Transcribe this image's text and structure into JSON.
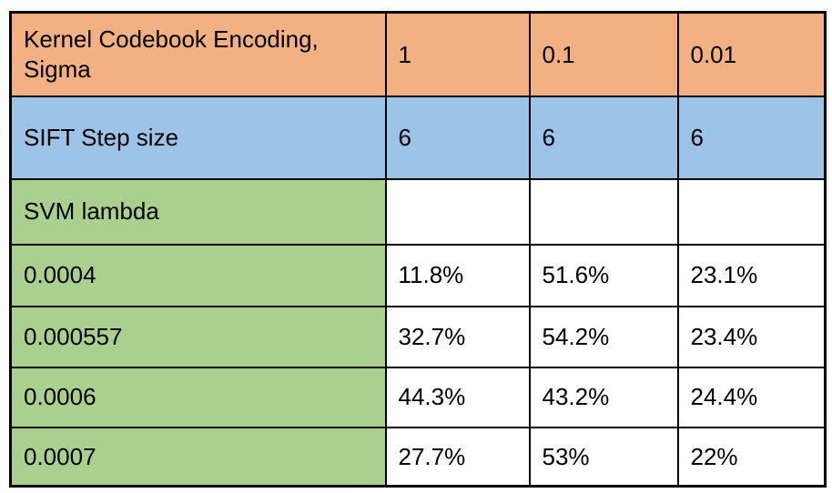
{
  "colors": {
    "header_orange": "#F2B083",
    "header_blue": "#9DC3E6",
    "label_green": "#A9D08E",
    "cell_white": "#FFFFFF",
    "border": "#000000",
    "text": "#000000"
  },
  "chart_data": {
    "type": "table",
    "layout_hint": "4 columns; first column is parameter labels; rows 1-2 are colored header rows; rows 3-7 have green label cells and white value cells",
    "rows": [
      {
        "cells": [
          "Kernel Codebook Encoding, Sigma",
          "1",
          "0.1",
          "0.01"
        ]
      },
      {
        "cells": [
          "SIFT Step size",
          "6",
          "6",
          "6"
        ]
      },
      {
        "cells": [
          "SVM lambda",
          "",
          "",
          ""
        ]
      },
      {
        "cells": [
          "0.0004",
          "11.8%",
          "51.6%",
          "23.1%"
        ]
      },
      {
        "cells": [
          "0.000557",
          "32.7%",
          "54.2%",
          "23.4%"
        ]
      },
      {
        "cells": [
          "0.0006",
          "44.3%",
          "43.2%",
          "24.4%"
        ]
      },
      {
        "cells": [
          "0.0007",
          "27.7%",
          "53%",
          "22%"
        ]
      }
    ]
  }
}
